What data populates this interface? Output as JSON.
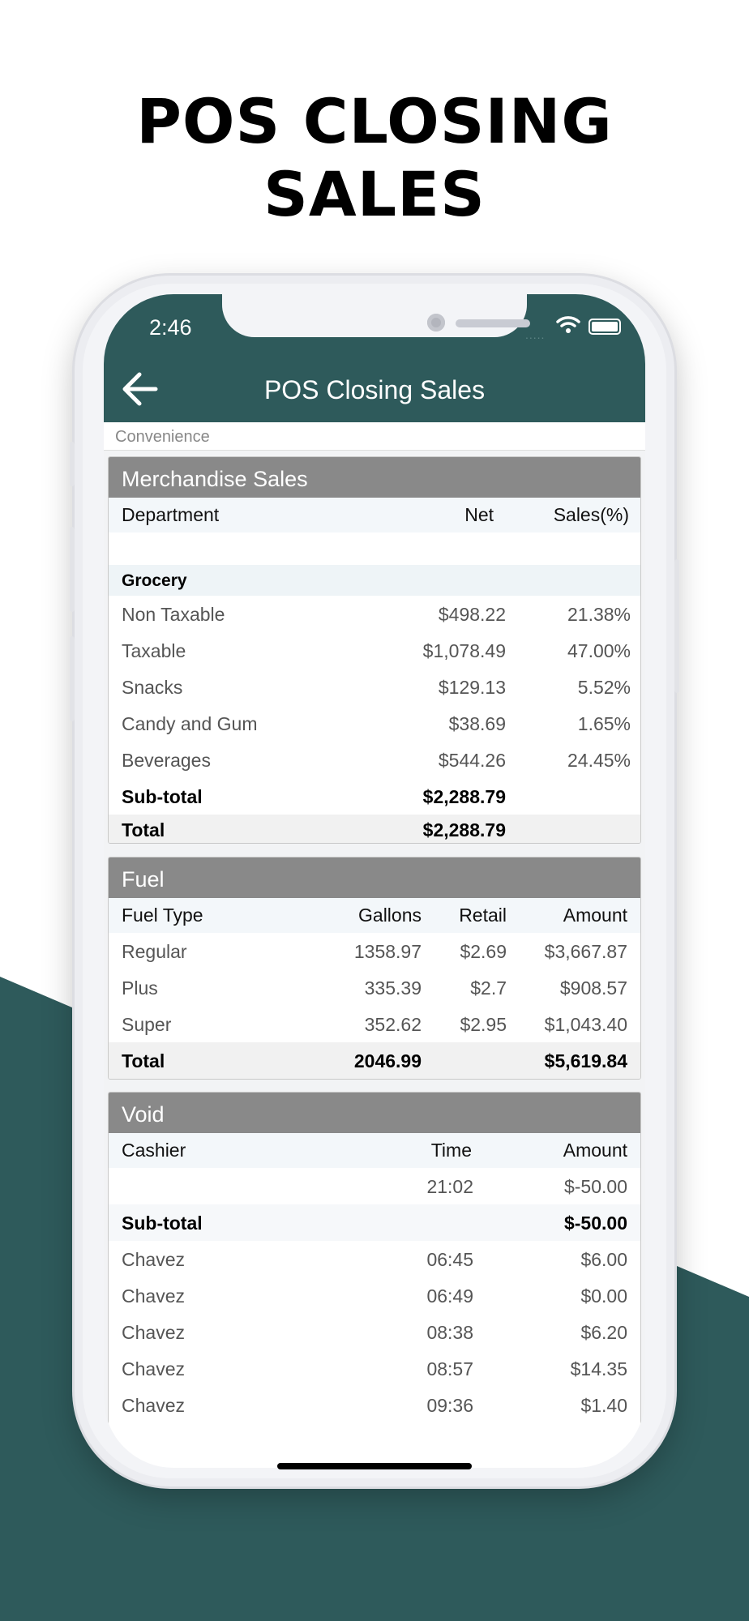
{
  "headline": {
    "line1": "POS CLOSING",
    "line2": "SALES"
  },
  "status": {
    "time": "2:46",
    "signal": "....."
  },
  "nav": {
    "title": "POS Closing Sales",
    "back_icon": "arrow-left-icon"
  },
  "store": {
    "name": "Convenience"
  },
  "colors": {
    "brand": "#2e5a5b",
    "card_header": "#898989"
  },
  "merch": {
    "title": "Merchandise Sales",
    "headers": {
      "department": "Department",
      "net": "Net",
      "pct": "Sales(%)"
    },
    "group": "Grocery",
    "rows": [
      {
        "name": "Non Taxable",
        "net": "$498.22",
        "pct": "21.38%"
      },
      {
        "name": "Taxable",
        "net": "$1,078.49",
        "pct": "47.00%"
      },
      {
        "name": "Snacks",
        "net": "$129.13",
        "pct": "5.52%"
      },
      {
        "name": "Candy and Gum",
        "net": "$38.69",
        "pct": "1.65%"
      },
      {
        "name": "Beverages",
        "net": "$544.26",
        "pct": "24.45%"
      }
    ],
    "subtotal": {
      "label": "Sub-total",
      "net": "$2,288.79"
    },
    "total": {
      "label": "Total",
      "net": "$2,288.79"
    }
  },
  "fuel": {
    "title": "Fuel",
    "headers": {
      "type": "Fuel Type",
      "gallons": "Gallons",
      "retail": "Retail",
      "amount": "Amount"
    },
    "rows": [
      {
        "type": "Regular",
        "gallons": "1358.97",
        "retail": "$2.69",
        "amount": "$3,667.87"
      },
      {
        "type": "Plus",
        "gallons": "335.39",
        "retail": "$2.7",
        "amount": "$908.57"
      },
      {
        "type": "Super",
        "gallons": "352.62",
        "retail": "$2.95",
        "amount": "$1,043.40"
      }
    ],
    "total": {
      "label": "Total",
      "gallons": "2046.99",
      "amount": "$5,619.84"
    }
  },
  "void": {
    "title": "Void",
    "headers": {
      "cashier": "Cashier",
      "time": "Time",
      "amount": "Amount"
    },
    "first": {
      "cashier": "",
      "time": "21:02",
      "amount": "$-50.00"
    },
    "subtotal": {
      "label": "Sub-total",
      "amount": "$-50.00"
    },
    "rows": [
      {
        "cashier": "Chavez",
        "time": "06:45",
        "amount": "$6.00"
      },
      {
        "cashier": "Chavez",
        "time": "06:49",
        "amount": "$0.00"
      },
      {
        "cashier": "Chavez",
        "time": "08:38",
        "amount": "$6.20"
      },
      {
        "cashier": "Chavez",
        "time": "08:57",
        "amount": "$14.35"
      },
      {
        "cashier": "Chavez",
        "time": "09:36",
        "amount": "$1.40"
      }
    ]
  }
}
